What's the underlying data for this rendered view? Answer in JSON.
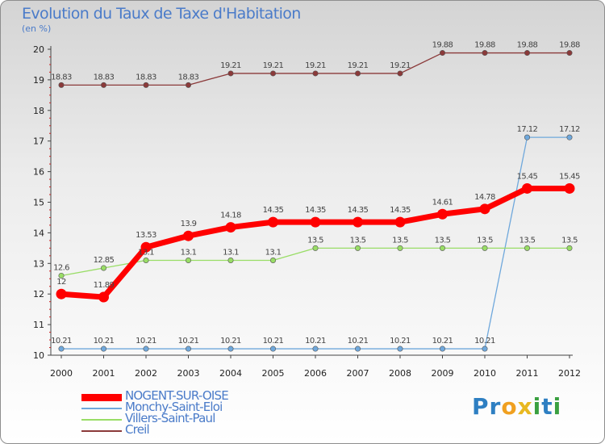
{
  "title": "Evolution du Taux de Taxe d'Habitation",
  "unit": "(en %)",
  "logo": {
    "text": "Proxiti",
    "letters": [
      {
        "ch": "P",
        "color": "#2e7fc2"
      },
      {
        "ch": "r",
        "color": "#2e7fc2"
      },
      {
        "ch": "o",
        "color": "#f0a020"
      },
      {
        "ch": "x",
        "color": "#e8b820"
      },
      {
        "ch": "i",
        "color": "#3aa040"
      },
      {
        "ch": "t",
        "color": "#2e7fc2"
      },
      {
        "ch": "i",
        "color": "#3aa040"
      }
    ]
  },
  "chart_data": {
    "type": "line",
    "title": "Evolution du Taux de Taxe d'Habitation",
    "ylabel": "(en %)",
    "xlabel": "",
    "x": [
      "2000",
      "2001",
      "2002",
      "2003",
      "2004",
      "2005",
      "2006",
      "2007",
      "2008",
      "2009",
      "2010",
      "2011",
      "2012"
    ],
    "ylim": [
      10,
      20
    ],
    "yticks": [
      "10",
      "11",
      "12",
      "13",
      "14",
      "15",
      "16",
      "17",
      "18",
      "19",
      "20"
    ],
    "grid": false,
    "legend_position": "bottom-left",
    "series": [
      {
        "name": "NOGENT-SUR-OISE",
        "color": "#ff0000",
        "emphasis": true,
        "values": [
          12,
          11.9,
          13.53,
          13.9,
          14.18,
          14.35,
          14.35,
          14.35,
          14.35,
          14.61,
          14.78,
          15.45,
          15.45
        ],
        "labels": [
          "12",
          "11.89",
          "13.53",
          "13.9",
          "14.18",
          "14.35",
          "14.35",
          "14.35",
          "14.35",
          "14.61",
          "14.78",
          "15.45",
          "15.45"
        ]
      },
      {
        "name": "Monchy-Saint-Eloi",
        "color": "#6fa8dc",
        "values": [
          10.21,
          10.21,
          10.21,
          10.21,
          10.21,
          10.21,
          10.21,
          10.21,
          10.21,
          10.21,
          10.21,
          17.12,
          17.12
        ],
        "labels": [
          "10.21",
          "10.21",
          "10.21",
          "10.21",
          "10.21",
          "10.21",
          "10.21",
          "10.21",
          "10.21",
          "10.21",
          "10.21",
          "17.12",
          "17.12"
        ]
      },
      {
        "name": "Villers-Saint-Paul",
        "color": "#99dd66",
        "values": [
          12.6,
          12.85,
          13.1,
          13.1,
          13.1,
          13.1,
          13.5,
          13.5,
          13.5,
          13.5,
          13.5,
          13.5,
          13.5
        ],
        "labels": [
          "12.6",
          "12.85",
          "13.1",
          "13.1",
          "13.1",
          "13.1",
          "13.5",
          "13.5",
          "13.5",
          "13.5",
          "13.5",
          "13.5",
          "13.5"
        ]
      },
      {
        "name": "Creil",
        "color": "#8b3a3a",
        "values": [
          18.83,
          18.83,
          18.83,
          18.83,
          19.21,
          19.21,
          19.21,
          19.21,
          19.21,
          19.88,
          19.88,
          19.88,
          19.88
        ],
        "labels": [
          "18.83",
          "18.83",
          "18.83",
          "18.83",
          "19.21",
          "19.21",
          "19.21",
          "19.21",
          "19.21",
          "19.88",
          "19.88",
          "19.88",
          "19.88"
        ]
      }
    ]
  }
}
